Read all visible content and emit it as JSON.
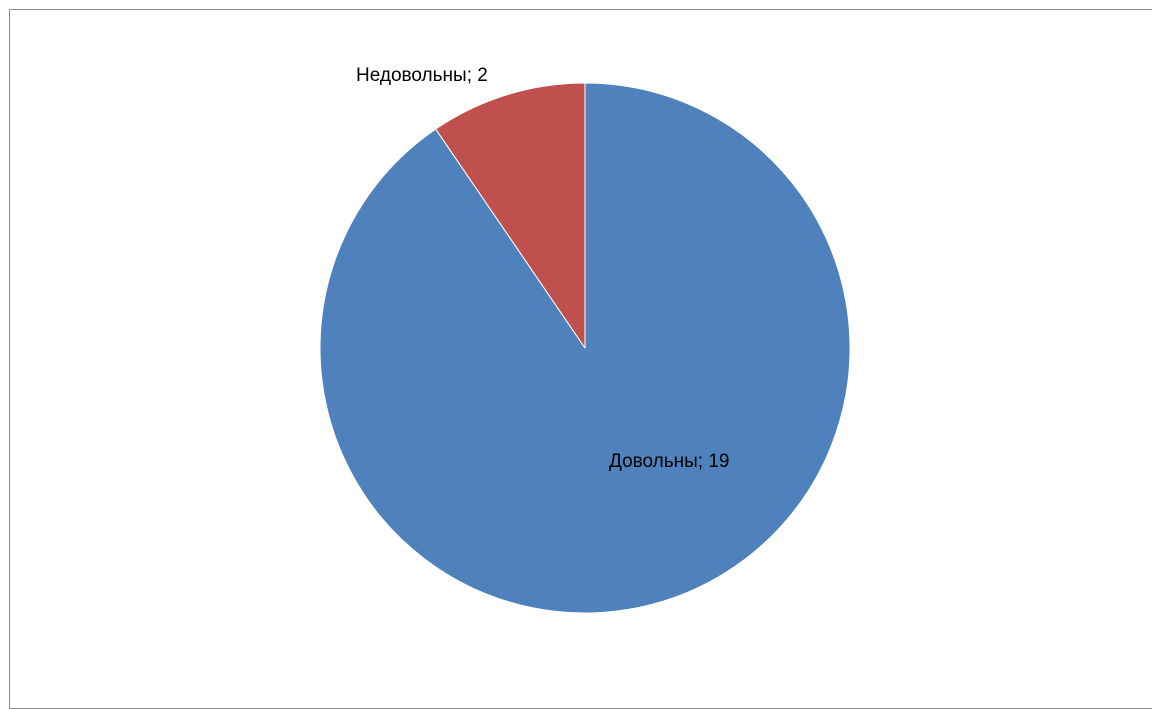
{
  "chart_data": {
    "type": "pie",
    "title": "",
    "categories": [
      "Довольны",
      "Недовольны"
    ],
    "values": [
      19,
      2
    ],
    "colors": [
      "#4f81bd",
      "#c0504d"
    ],
    "data_labels": [
      "Довольны; 19",
      "Недовольны; 2"
    ],
    "legend": "none",
    "start_angle_deg": 0,
    "direction": "clockwise"
  }
}
